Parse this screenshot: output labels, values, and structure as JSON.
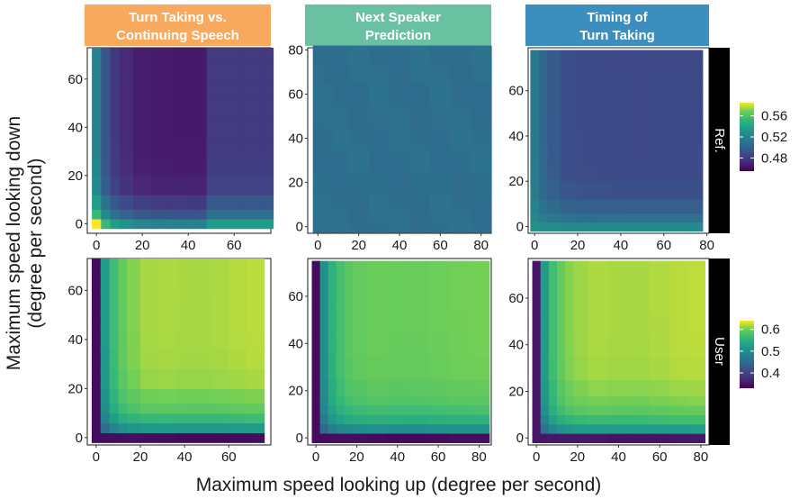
{
  "figure": {
    "xlabel": "Maximum speed looking up (degree per second)",
    "ylabel_line1": "Maximum speed looking down",
    "ylabel_line2": "(degree per second)"
  },
  "columns": [
    {
      "line1": "Turn Taking vs.",
      "line2": "Continuing Speech",
      "color": "#f9a95e"
    },
    {
      "line1": "Next Speaker",
      "line2": "Prediction",
      "color": "#69c1a1"
    },
    {
      "line1": "Timing of",
      "line2": "Turn Taking",
      "color": "#3c8ebf"
    }
  ],
  "rows": [
    {
      "label": "Ref.",
      "legend_ticks": [
        "0.56",
        "0.52",
        "0.48"
      ],
      "legend_values": [
        0.56,
        0.52,
        0.48
      ],
      "legend_range": [
        0.455,
        0.585
      ]
    },
    {
      "label": "User",
      "legend_ticks": [
        "0.6",
        "0.5",
        "0.4"
      ],
      "legend_values": [
        0.6,
        0.5,
        0.4
      ],
      "legend_range": [
        0.33,
        0.64
      ]
    }
  ],
  "chart_data": [
    {
      "type": "heatmap",
      "row": "Ref.",
      "column": "Turn Taking vs. Continuing Speech",
      "x": [
        0,
        4,
        8,
        12,
        20,
        28,
        36,
        44,
        52,
        60,
        68,
        74
      ],
      "y": [
        0,
        4,
        8,
        16,
        24,
        32,
        40,
        48,
        56,
        64,
        70
      ],
      "xlim": [
        -4,
        76
      ],
      "ylim": [
        -4,
        73
      ],
      "xticks": [
        0,
        20,
        40,
        60
      ],
      "yticks": [
        0,
        20,
        40,
        60
      ],
      "pattern": "corner",
      "base": 0.465,
      "v_x0": 0.52,
      "v_y0": 0.52,
      "v_corner": 0.585,
      "decay": 6,
      "x_step_at": 52,
      "x_step_value": 0.015
    },
    {
      "type": "heatmap",
      "row": "Ref.",
      "column": "Next Speaker Prediction",
      "x": [
        0,
        5,
        10,
        20,
        30,
        40,
        50,
        60,
        70,
        80
      ],
      "y": [
        0,
        5,
        10,
        20,
        30,
        40,
        50,
        60,
        70,
        78
      ],
      "xlim": [
        -5,
        85
      ],
      "ylim": [
        -3,
        81
      ],
      "xticks": [
        0,
        20,
        40,
        60,
        80
      ],
      "yticks": [
        0,
        20,
        40,
        60,
        80
      ],
      "pattern": "uniform",
      "base": 0.508
    },
    {
      "type": "heatmap",
      "row": "Ref.",
      "column": "Timing of Turn Taking",
      "x": [
        0,
        4,
        8,
        16,
        24,
        32,
        40,
        48,
        56,
        64,
        72,
        76
      ],
      "y": [
        0,
        4,
        8,
        16,
        24,
        32,
        40,
        48,
        56,
        64,
        72,
        76
      ],
      "xlim": [
        -3,
        81
      ],
      "ylim": [
        -3,
        79
      ],
      "xticks": [
        0,
        20,
        40,
        60,
        80
      ],
      "yticks": [
        0,
        20,
        40,
        60
      ],
      "pattern": "corner",
      "base": 0.487,
      "v_x0": 0.515,
      "v_y0": 0.525,
      "v_corner": 0.53,
      "decay": 7
    },
    {
      "type": "heatmap",
      "row": "User",
      "column": "Turn Taking vs. Continuing Speech",
      "x": [
        0,
        4,
        8,
        12,
        16,
        24,
        32,
        40,
        48,
        56,
        64,
        72
      ],
      "y": [
        0,
        4,
        8,
        12,
        16,
        24,
        32,
        40,
        48,
        56,
        64,
        70
      ],
      "xlim": [
        -4,
        79
      ],
      "ylim": [
        -3,
        73
      ],
      "xticks": [
        0,
        20,
        40,
        60
      ],
      "yticks": [
        0,
        20,
        40,
        60
      ],
      "pattern": "rise",
      "lo": 0.34,
      "hi": 0.62,
      "k": 7
    },
    {
      "type": "heatmap",
      "row": "User",
      "column": "Next Speaker Prediction",
      "x": [
        0,
        4,
        8,
        12,
        16,
        20,
        30,
        40,
        50,
        60,
        70,
        80
      ],
      "y": [
        0,
        4,
        8,
        12,
        16,
        20,
        30,
        40,
        50,
        60,
        70
      ],
      "xlim": [
        -4,
        86
      ],
      "ylim": [
        -3,
        76
      ],
      "xticks": [
        0,
        20,
        40,
        60,
        80
      ],
      "yticks": [
        0,
        20,
        40,
        60
      ],
      "pattern": "rise",
      "lo": 0.34,
      "hi": 0.6,
      "k": 7
    },
    {
      "type": "heatmap",
      "row": "User",
      "column": "Timing of Turn Taking",
      "x": [
        0,
        4,
        8,
        12,
        16,
        20,
        30,
        40,
        50,
        60,
        70,
        78
      ],
      "y": [
        0,
        4,
        8,
        12,
        16,
        20,
        30,
        40,
        50,
        60,
        70,
        74
      ],
      "xlim": [
        -4,
        84
      ],
      "ylim": [
        -3,
        77
      ],
      "xticks": [
        0,
        20,
        40,
        60,
        80
      ],
      "yticks": [
        0,
        20,
        40,
        60
      ],
      "pattern": "rise",
      "lo": 0.35,
      "hi": 0.62,
      "k": 7
    }
  ]
}
